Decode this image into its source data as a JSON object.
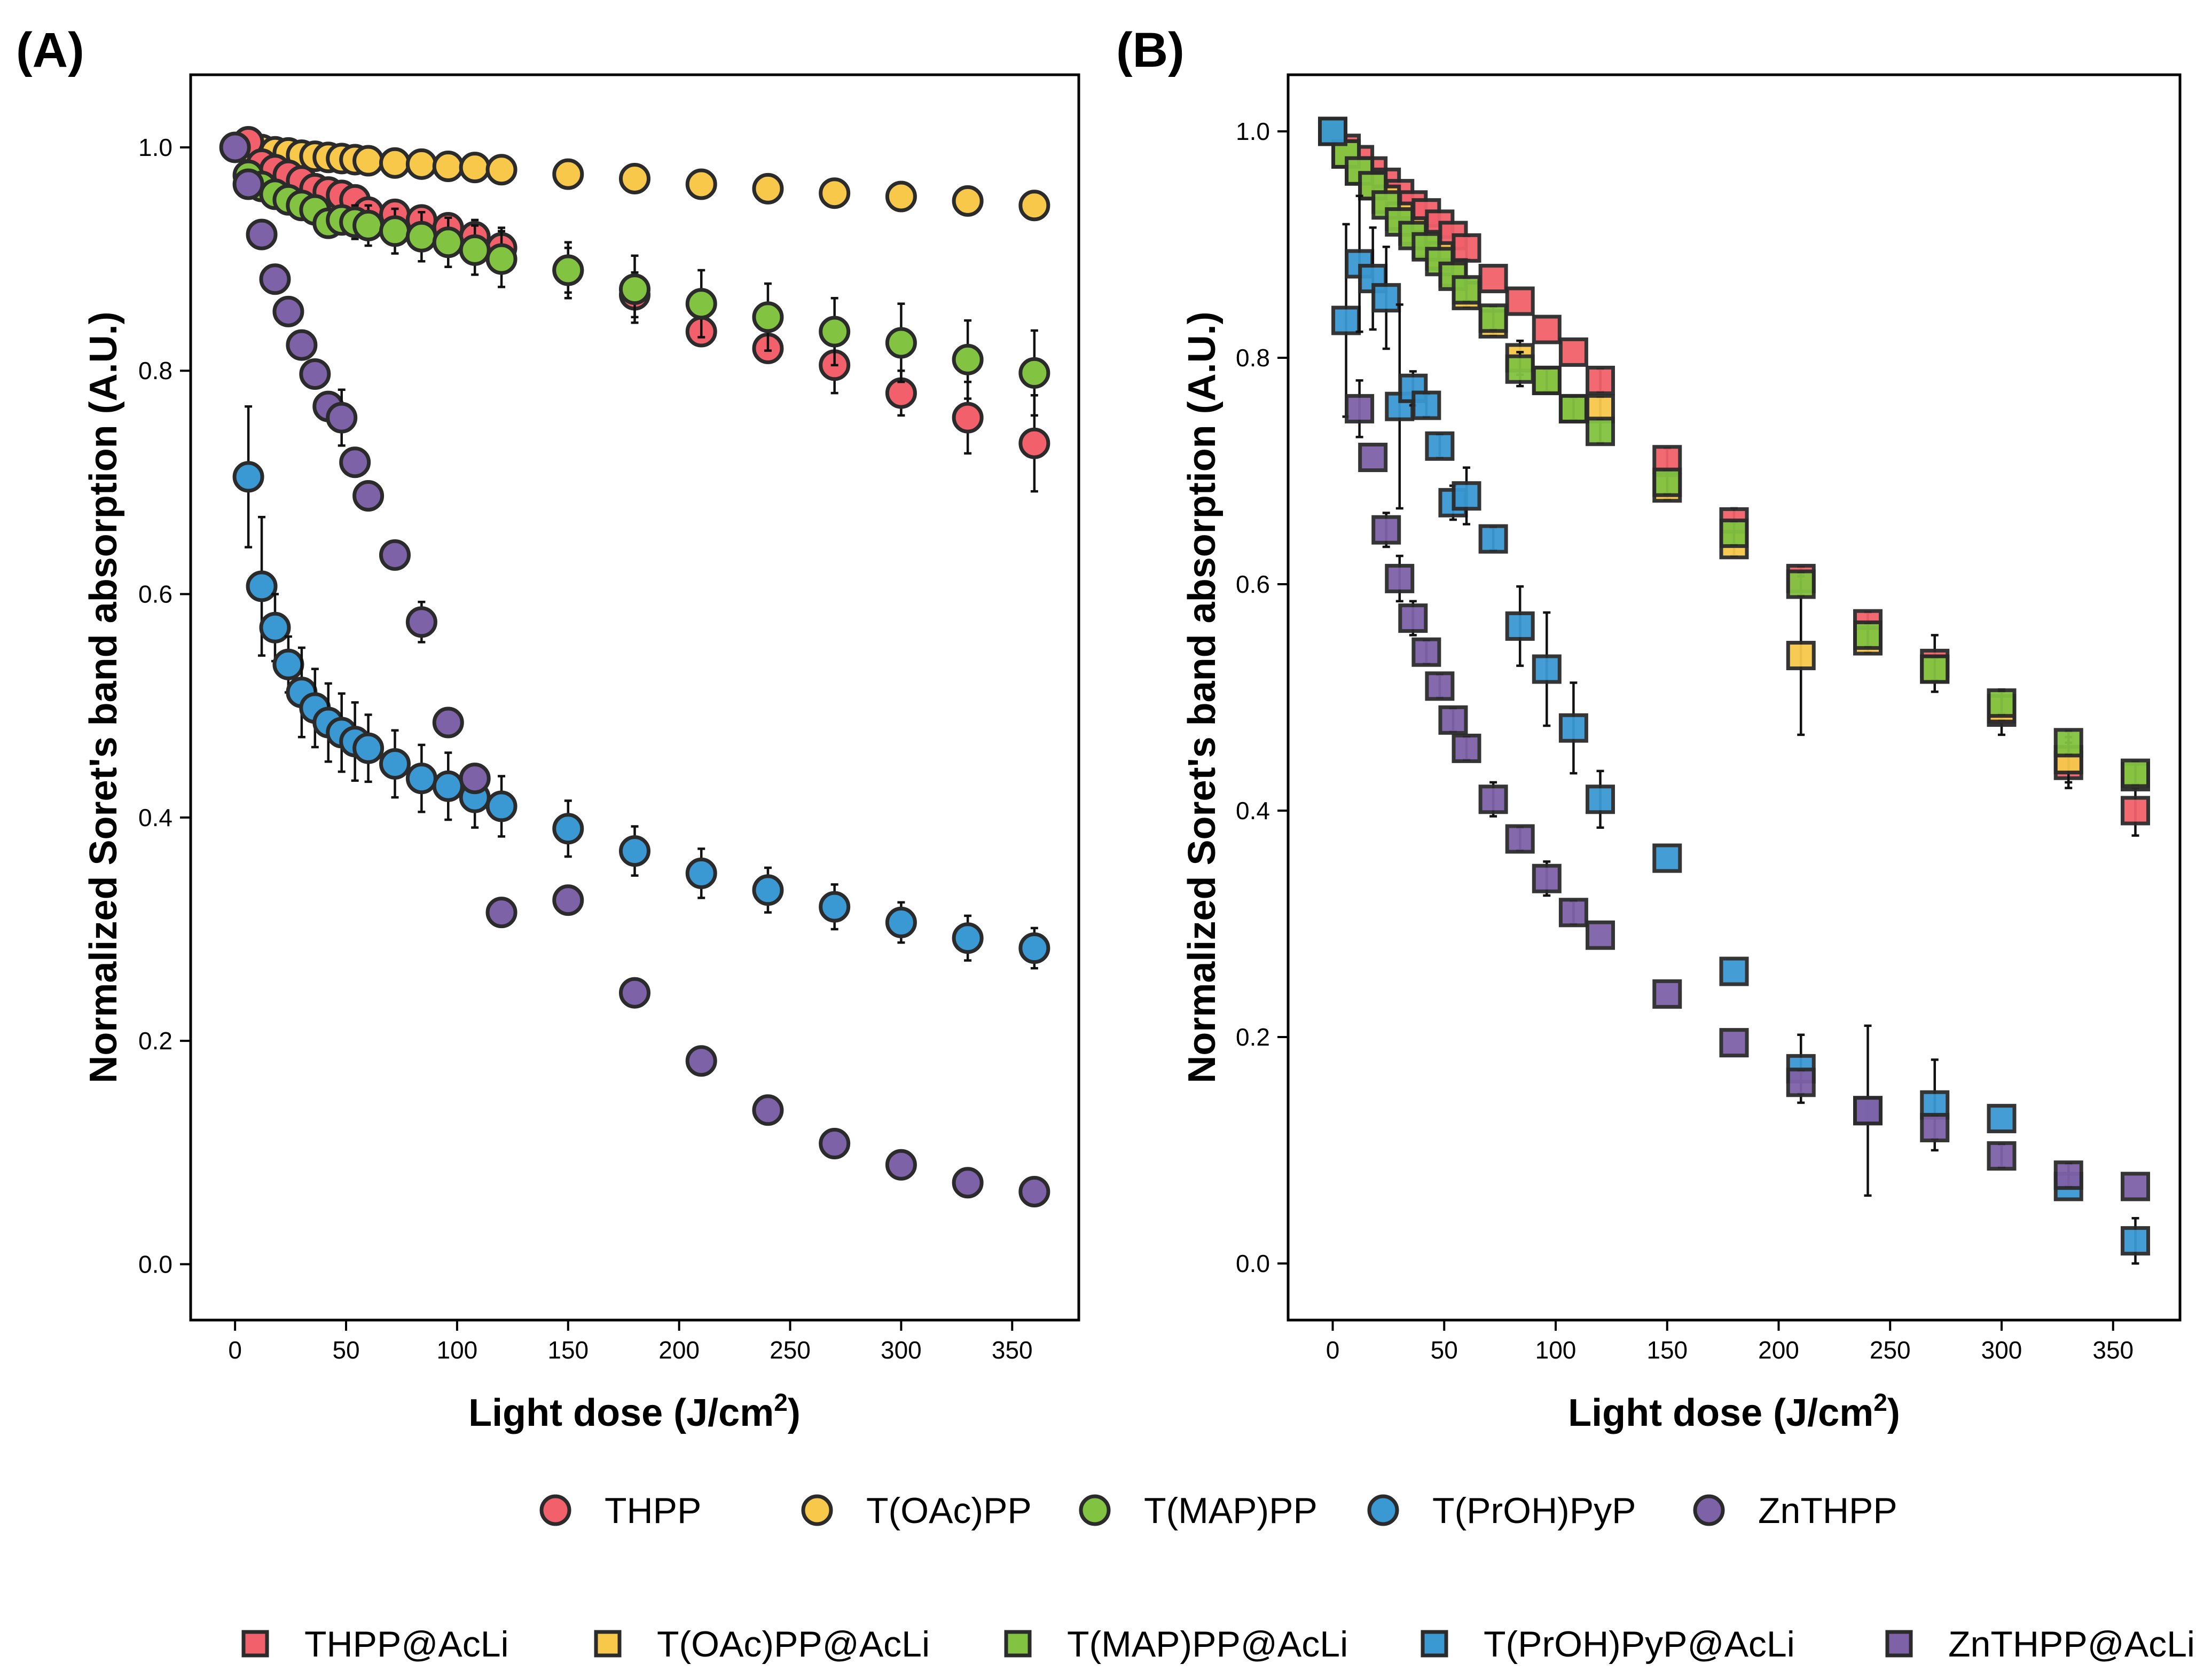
{
  "colors": {
    "THPP": "#f2616b",
    "T(OAc)PP": "#f7c84a",
    "T(MAP)PP": "#82c341",
    "T(PrOH)PyP": "#3a98d3",
    "ZnTHPP": "#7e62a8",
    "edge": "#2b2b2b",
    "errorbar": "#111111"
  },
  "legend": {
    "circles": [
      "THPP",
      "T(OAc)PP",
      "T(MAP)PP",
      "T(PrOH)PyP",
      "ZnTHPP"
    ],
    "squares": [
      "THPP@AcLi",
      "T(OAc)PP@AcLi",
      "T(MAP)PP@AcLi",
      "T(PrOH)PyP@AcLi",
      "ZnTHPP@AcLi"
    ]
  },
  "chart_data": [
    {
      "panel_label": "(A)",
      "type": "scatter",
      "marker": "circle",
      "xlabel": "Light dose",
      "xlabel_unit_pre": "(J/cm",
      "xlabel_unit_sup": "2",
      "xlabel_unit_post": ")",
      "ylabel": "Normalized Soret's band absorption (A.U.)",
      "xlim": [
        -20,
        380
      ],
      "ylim": [
        -0.05,
        1.065
      ],
      "xticks": [
        0,
        50,
        100,
        150,
        200,
        250,
        300,
        350
      ],
      "yticks": [
        0.0,
        0.2,
        0.4,
        0.6,
        0.8,
        1.0
      ],
      "ytick_labels": [
        "0.0",
        "0.2",
        "0.4",
        "0.6",
        "0.8",
        "1.0"
      ],
      "series": [
        {
          "name": "T(OAc)PP",
          "x": [
            6,
            12,
            18,
            24,
            30,
            36,
            42,
            48,
            54,
            60,
            72,
            84,
            96,
            108,
            120,
            150,
            180,
            210,
            240,
            270,
            300,
            330,
            360
          ],
          "y": [
            1.0,
            0.998,
            0.996,
            0.995,
            0.993,
            0.992,
            0.991,
            0.99,
            0.989,
            0.988,
            0.986,
            0.985,
            0.983,
            0.982,
            0.98,
            0.976,
            0.972,
            0.967,
            0.963,
            0.959,
            0.956,
            0.952,
            0.948
          ],
          "err": [
            0.003,
            0.003,
            0.003,
            0.003,
            0.003,
            0.003,
            0.003,
            0.003,
            0.003,
            0.003,
            0.003,
            0.003,
            0.003,
            0.003,
            0.003,
            0.004,
            0.004,
            0.005,
            0.005,
            0.005,
            0.005,
            0.005,
            0.005
          ]
        },
        {
          "name": "THPP",
          "x": [
            6,
            12,
            18,
            24,
            30,
            36,
            42,
            48,
            54,
            60,
            72,
            84,
            96,
            108,
            120,
            150,
            180,
            210,
            240,
            270,
            300,
            330,
            360
          ],
          "y": [
            1.005,
            0.985,
            0.98,
            0.975,
            0.97,
            0.963,
            0.96,
            0.957,
            0.953,
            0.942,
            0.94,
            0.935,
            0.928,
            0.92,
            0.91,
            0.89,
            0.868,
            0.835,
            0.82,
            0.805,
            0.78,
            0.758,
            0.735
          ],
          "err": [
            0.005,
            0.005,
            0.005,
            0.005,
            0.005,
            0.005,
            0.005,
            0.006,
            0.006,
            0.008,
            0.008,
            0.01,
            0.012,
            0.015,
            0.018,
            0.02,
            0.02,
            0.008,
            0.01,
            0.025,
            0.02,
            0.032,
            0.043
          ]
        },
        {
          "name": "T(MAP)PP",
          "x": [
            6,
            12,
            18,
            24,
            30,
            36,
            42,
            48,
            54,
            60,
            72,
            84,
            96,
            108,
            120,
            150,
            180,
            210,
            240,
            270,
            300,
            330,
            360
          ],
          "y": [
            0.975,
            0.965,
            0.958,
            0.953,
            0.948,
            0.944,
            0.932,
            0.935,
            0.933,
            0.93,
            0.925,
            0.92,
            0.915,
            0.908,
            0.9,
            0.89,
            0.873,
            0.86,
            0.848,
            0.835,
            0.825,
            0.81,
            0.798
          ],
          "err": [
            0.008,
            0.008,
            0.008,
            0.008,
            0.008,
            0.01,
            0.012,
            0.012,
            0.015,
            0.018,
            0.02,
            0.022,
            0.022,
            0.022,
            0.025,
            0.025,
            0.03,
            0.03,
            0.03,
            0.03,
            0.035,
            0.035,
            0.038
          ]
        },
        {
          "name": "T(PrOH)PyP",
          "x": [
            6,
            12,
            18,
            24,
            30,
            36,
            42,
            48,
            54,
            60,
            72,
            84,
            96,
            108,
            120,
            150,
            180,
            210,
            240,
            270,
            300,
            330,
            360
          ],
          "y": [
            0.705,
            0.607,
            0.57,
            0.537,
            0.512,
            0.498,
            0.485,
            0.476,
            0.468,
            0.462,
            0.448,
            0.435,
            0.428,
            0.418,
            0.41,
            0.39,
            0.37,
            0.35,
            0.335,
            0.32,
            0.306,
            0.292,
            0.283
          ],
          "err": [
            0.063,
            0.062,
            0.03,
            0.025,
            0.04,
            0.035,
            0.035,
            0.035,
            0.035,
            0.03,
            0.03,
            0.03,
            0.03,
            0.027,
            0.027,
            0.025,
            0.022,
            0.022,
            0.02,
            0.02,
            0.018,
            0.02,
            0.018
          ]
        },
        {
          "name": "ZnTHPP",
          "x": [
            0,
            6,
            12,
            18,
            24,
            30,
            36,
            42,
            48,
            54,
            60,
            72,
            84,
            96,
            108,
            120,
            150,
            180,
            210,
            240,
            270,
            300,
            330,
            360
          ],
          "y": [
            1.0,
            0.967,
            0.922,
            0.882,
            0.853,
            0.823,
            0.797,
            0.768,
            0.758,
            0.718,
            0.688,
            0.635,
            0.575,
            0.485,
            0.435,
            0.315,
            0.326,
            0.243,
            0.182,
            0.138,
            0.108,
            0.089,
            0.073,
            0.065
          ],
          "err": [
            0.0,
            0.005,
            0.005,
            0.005,
            0.005,
            0.005,
            0.005,
            0.005,
            0.025,
            0.005,
            0.005,
            0.005,
            0.018,
            0.005,
            0.005,
            0.005,
            0.005,
            0.005,
            0.005,
            0.005,
            0.005,
            0.005,
            0.005,
            0.005
          ]
        }
      ]
    },
    {
      "panel_label": "(B)",
      "type": "scatter",
      "marker": "square",
      "xlabel": "Light dose",
      "xlabel_unit_pre": "(J/cm",
      "xlabel_unit_sup": "2",
      "xlabel_unit_post": ")",
      "ylabel": "Normalized Soret's band absorption (A.U.)",
      "xlim": [
        -20,
        380
      ],
      "ylim": [
        -0.05,
        1.05
      ],
      "xticks": [
        0,
        50,
        100,
        150,
        200,
        250,
        300,
        350
      ],
      "yticks": [
        0.0,
        0.2,
        0.4,
        0.6,
        0.8,
        1.0
      ],
      "ytick_labels": [
        "0.0",
        "0.2",
        "0.4",
        "0.6",
        "0.8",
        "1.0"
      ],
      "series": [
        {
          "name": "THPP@AcLi",
          "x": [
            0,
            6,
            12,
            18,
            24,
            30,
            36,
            42,
            48,
            54,
            60,
            72,
            84,
            96,
            108,
            120,
            150,
            180,
            210,
            240,
            270,
            300,
            330,
            360
          ],
          "y": [
            1.0,
            0.985,
            0.975,
            0.965,
            0.955,
            0.945,
            0.935,
            0.928,
            0.918,
            0.908,
            0.897,
            0.87,
            0.85,
            0.825,
            0.805,
            0.78,
            0.71,
            0.655,
            0.605,
            0.565,
            0.53,
            0.487,
            0.44,
            0.4
          ],
          "err": [
            0.0,
            0.005,
            0.005,
            0.005,
            0.005,
            0.005,
            0.005,
            0.005,
            0.005,
            0.005,
            0.01,
            0.005,
            0.005,
            0.005,
            0.005,
            0.01,
            0.01,
            0.012,
            0.01,
            0.01,
            0.025,
            0.02,
            0.02,
            0.022
          ]
        },
        {
          "name": "T(OAc)PP@AcLi",
          "x": [
            0,
            6,
            12,
            18,
            24,
            30,
            36,
            42,
            48,
            54,
            60,
            72,
            84,
            96,
            108,
            120,
            150,
            180,
            210,
            240,
            270,
            300,
            330,
            360
          ],
          "y": [
            1.0,
            0.98,
            0.965,
            0.952,
            0.94,
            0.925,
            0.912,
            0.9,
            0.89,
            0.875,
            0.855,
            0.83,
            0.8,
            0.78,
            0.755,
            0.755,
            0.685,
            0.635,
            0.537,
            0.55,
            0.525,
            0.49,
            0.445,
            0.43
          ],
          "err": [
            0.0,
            0.005,
            0.005,
            0.005,
            0.005,
            0.005,
            0.005,
            0.005,
            0.005,
            0.005,
            0.01,
            0.01,
            0.015,
            0.01,
            0.01,
            0.01,
            0.01,
            0.01,
            0.07,
            0.01,
            0.01,
            0.01,
            0.02,
            0.01
          ]
        },
        {
          "name": "T(MAP)PP@AcLi",
          "x": [
            0,
            6,
            12,
            18,
            24,
            30,
            36,
            42,
            48,
            54,
            60,
            72,
            84,
            96,
            108,
            120,
            150,
            180,
            210,
            240,
            270,
            300,
            330,
            360
          ],
          "y": [
            1.0,
            0.98,
            0.965,
            0.952,
            0.935,
            0.92,
            0.908,
            0.898,
            0.885,
            0.872,
            0.86,
            0.835,
            0.79,
            0.78,
            0.755,
            0.735,
            0.69,
            0.645,
            0.6,
            0.555,
            0.525,
            0.495,
            0.46,
            0.433
          ],
          "err": [
            0.0,
            0.005,
            0.005,
            0.005,
            0.005,
            0.005,
            0.005,
            0.005,
            0.005,
            0.005,
            0.01,
            0.01,
            0.015,
            0.01,
            0.01,
            0.01,
            0.01,
            0.01,
            0.01,
            0.01,
            0.01,
            0.01,
            0.01,
            0.01
          ]
        },
        {
          "name": "T(PrOH)PyP@AcLi",
          "x": [
            0,
            6,
            12,
            18,
            24,
            30,
            36,
            42,
            48,
            54,
            60,
            72,
            84,
            96,
            108,
            120,
            150,
            180,
            210,
            240,
            270,
            300,
            330,
            360
          ],
          "y": [
            1.0,
            0.833,
            0.883,
            0.87,
            0.853,
            0.757,
            0.773,
            0.758,
            0.722,
            0.672,
            0.678,
            0.64,
            0.563,
            0.525,
            0.473,
            0.41,
            0.358,
            0.258,
            0.172,
            0.135,
            0.14,
            0.128,
            0.068,
            0.02
          ],
          "err": [
            0.0,
            0.085,
            0.06,
            0.045,
            0.045,
            0.09,
            0.015,
            0.01,
            0.01,
            0.015,
            0.025,
            0.01,
            0.035,
            0.05,
            0.04,
            0.025,
            0.005,
            0.005,
            0.03,
            0.075,
            0.04,
            0.005,
            0.005,
            0.02
          ]
        },
        {
          "name": "ZnTHPP@AcLi",
          "x": [
            12,
            18,
            24,
            30,
            36,
            42,
            48,
            54,
            60,
            72,
            84,
            96,
            108,
            120,
            150,
            180,
            210,
            240,
            270,
            300,
            330,
            360
          ],
          "y": [
            0.755,
            0.712,
            0.648,
            0.605,
            0.57,
            0.54,
            0.51,
            0.48,
            0.455,
            0.41,
            0.375,
            0.34,
            0.31,
            0.29,
            0.238,
            0.195,
            0.16,
            0.135,
            0.12,
            0.095,
            0.078,
            0.068
          ],
          "err": [
            0.025,
            0.005,
            0.015,
            0.02,
            0.015,
            0.01,
            0.01,
            0.01,
            0.01,
            0.015,
            0.01,
            0.015,
            0.01,
            0.005,
            0.005,
            0.005,
            0.01,
            0.005,
            0.01,
            0.01,
            0.01,
            0.005
          ]
        }
      ]
    }
  ]
}
